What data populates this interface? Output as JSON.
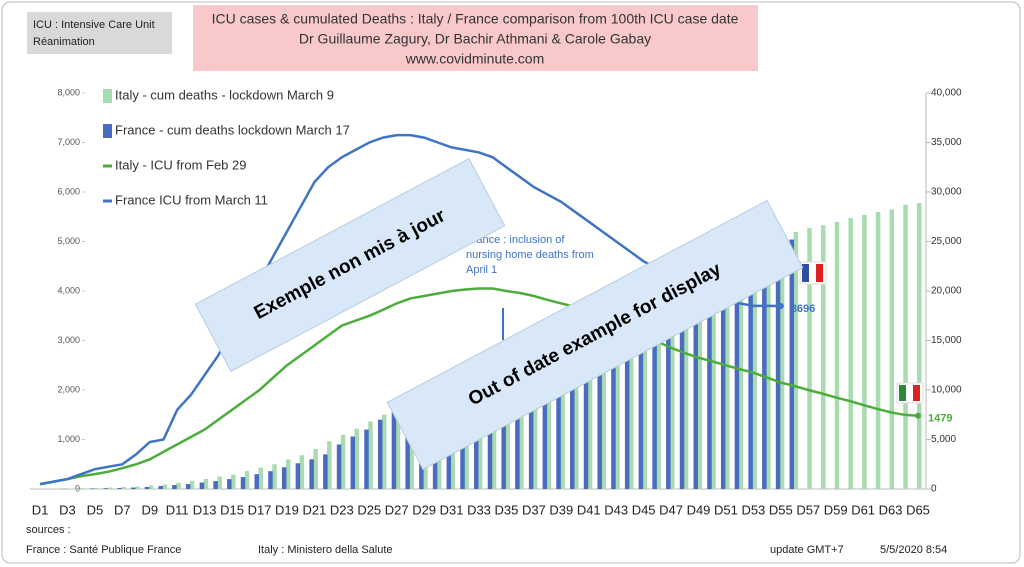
{
  "info_box": [
    "ICU : Intensive Care Unit",
    "Réanimation"
  ],
  "title_lines": [
    "ICU cases  & cumulated Deaths : Italy / France comparison from 100th ICU case date",
    "Dr Guillaume Zagury, Dr Bachir Athmani & Carole Gabay",
    "www.covidminute.com"
  ],
  "banners": [
    "Exemple non mis à jour",
    "Out of date example for display"
  ],
  "footer": {
    "sources": "sources :",
    "france": "France : Santé Publique France",
    "italy": "Italy : Ministero della Salute",
    "update": "update GMT+7",
    "date": "5/5/2020 8:54"
  },
  "chart_data": {
    "type": "bar-line",
    "categories": [
      "D1",
      null,
      "D3",
      null,
      "D5",
      null,
      "D7",
      null,
      "D9",
      null,
      "D11",
      null,
      "D13",
      null,
      "D15",
      null,
      "D17",
      null,
      "D19",
      null,
      "D21",
      null,
      "D23",
      null,
      "D25",
      null,
      "D27",
      null,
      "D29",
      null,
      "D31",
      null,
      "D33",
      null,
      "D35",
      null,
      "D37",
      null,
      "D39",
      null,
      "D41",
      null,
      "D43",
      null,
      "D45",
      null,
      "D47",
      null,
      "D49",
      null,
      "D51",
      null,
      "D53",
      null,
      "D55",
      null,
      "D57",
      null,
      "D59",
      null,
      "D61",
      null,
      "D63",
      null,
      "D65"
    ],
    "series": [
      {
        "name": "Italy - cum deaths - lockdown March 9",
        "kind": "bar",
        "axis": "y2",
        "color": "#a8dbb0",
        "values": [
          29,
          34,
          52,
          79,
          107,
          148,
          197,
          233,
          366,
          463,
          631,
          827,
          1016,
          1266,
          1441,
          1809,
          2158,
          2503,
          2978,
          3405,
          4032,
          4825,
          5476,
          6077,
          6820,
          7503,
          8165,
          9134,
          10023,
          10779,
          11591,
          12428,
          13155,
          13915,
          14681,
          15362,
          15887,
          16523,
          17127,
          17669,
          18279,
          18849,
          19468,
          19899,
          20465,
          21067,
          21645,
          22170,
          22745,
          23227,
          23660,
          24114,
          24648,
          25085,
          25549,
          25969,
          26384,
          26644,
          26977,
          27359,
          27682,
          27967,
          28236,
          28710,
          28884
        ]
      },
      {
        "name": "France - cum deaths lockdown March 17",
        "kind": "bar",
        "axis": "y2",
        "color": "#4a6cc0",
        "values": [
          0,
          0,
          20,
          40,
          60,
          80,
          100,
          150,
          200,
          300,
          400,
          500,
          650,
          800,
          1000,
          1200,
          1500,
          1800,
          2200,
          2600,
          3000,
          3500,
          4500,
          5300,
          6000,
          7000,
          7800,
          8600,
          9500,
          10500,
          11500,
          12300,
          13200,
          14000,
          14800,
          15500,
          16200,
          16800,
          17300,
          17900,
          18400,
          18900,
          19400,
          19800,
          20300,
          20800,
          21300,
          21800,
          22300,
          22700,
          23200,
          23700,
          24100,
          24500,
          24900,
          25200,
          null,
          null,
          null,
          null,
          null,
          null,
          null,
          null,
          null
        ]
      },
      {
        "name": "Italy - ICU from Feb 29",
        "kind": "line",
        "color": "#4cad3c",
        "values": [
          100,
          150,
          200,
          260,
          300,
          350,
          420,
          500,
          600,
          750,
          900,
          1050,
          1200,
          1400,
          1600,
          1800,
          2000,
          2250,
          2500,
          2700,
          2900,
          3100,
          3300,
          3400,
          3500,
          3620,
          3750,
          3850,
          3900,
          3950,
          4000,
          4030,
          4050,
          4050,
          4000,
          3960,
          3900,
          3820,
          3750,
          3680,
          3600,
          3500,
          3400,
          3250,
          3100,
          2980,
          2850,
          2750,
          2650,
          2580,
          2500,
          2420,
          2350,
          2250,
          2150,
          2080,
          2000,
          1930,
          1850,
          1780,
          1700,
          1620,
          1550,
          1500,
          1479
        ]
      },
      {
        "name": "France ICU from March 11",
        "kind": "line",
        "color": "#3f74c4",
        "values": [
          100,
          150,
          200,
          300,
          400,
          450,
          500,
          700,
          950,
          1000,
          1600,
          1900,
          2300,
          2700,
          3200,
          3700,
          4200,
          4700,
          5200,
          5700,
          6200,
          6500,
          6700,
          6850,
          7000,
          7100,
          7150,
          7150,
          7100,
          7000,
          6900,
          6850,
          6800,
          6700,
          6500,
          6300,
          6100,
          5950,
          5800,
          5600,
          5400,
          5200,
          5000,
          4800,
          4600,
          4450,
          4300,
          4200,
          4100,
          3950,
          3850,
          3750,
          3700,
          3700,
          3696,
          null,
          null,
          null,
          null,
          null,
          null,
          null,
          null,
          null,
          null
        ]
      }
    ],
    "ylim": [
      0,
      8000
    ],
    "yticks": [
      0,
      {
        "value": 1000,
        "label": "1,000"
      },
      {
        "value": 2000,
        "label": "2,000"
      },
      {
        "value": 3000,
        "label": "3,000"
      },
      {
        "value": 4000,
        "label": "4,000"
      },
      {
        "value": 5000,
        "label": "5,000"
      },
      {
        "value": 6000,
        "label": "6,000"
      },
      {
        "value": 7000,
        "label": "7,000"
      },
      {
        "value": 8000,
        "label": "8,000"
      }
    ],
    "y2lim": [
      0,
      40000
    ],
    "y2ticks": [
      0,
      {
        "value": 5000,
        "label": "5,000"
      },
      {
        "value": 10000,
        "label": "10,000"
      },
      {
        "value": 15000,
        "label": "15,000"
      },
      {
        "value": 20000,
        "label": "20,000"
      },
      {
        "value": 25000,
        "label": "25,000"
      },
      {
        "value": 30000,
        "label": "30,000"
      },
      {
        "value": 35000,
        "label": "35,000"
      },
      {
        "value": 40000,
        "label": "40,000"
      }
    ],
    "legend": "upper left",
    "annotation": [
      "France : inclusion of",
      "nursing home deaths from",
      "April 1"
    ]
  }
}
